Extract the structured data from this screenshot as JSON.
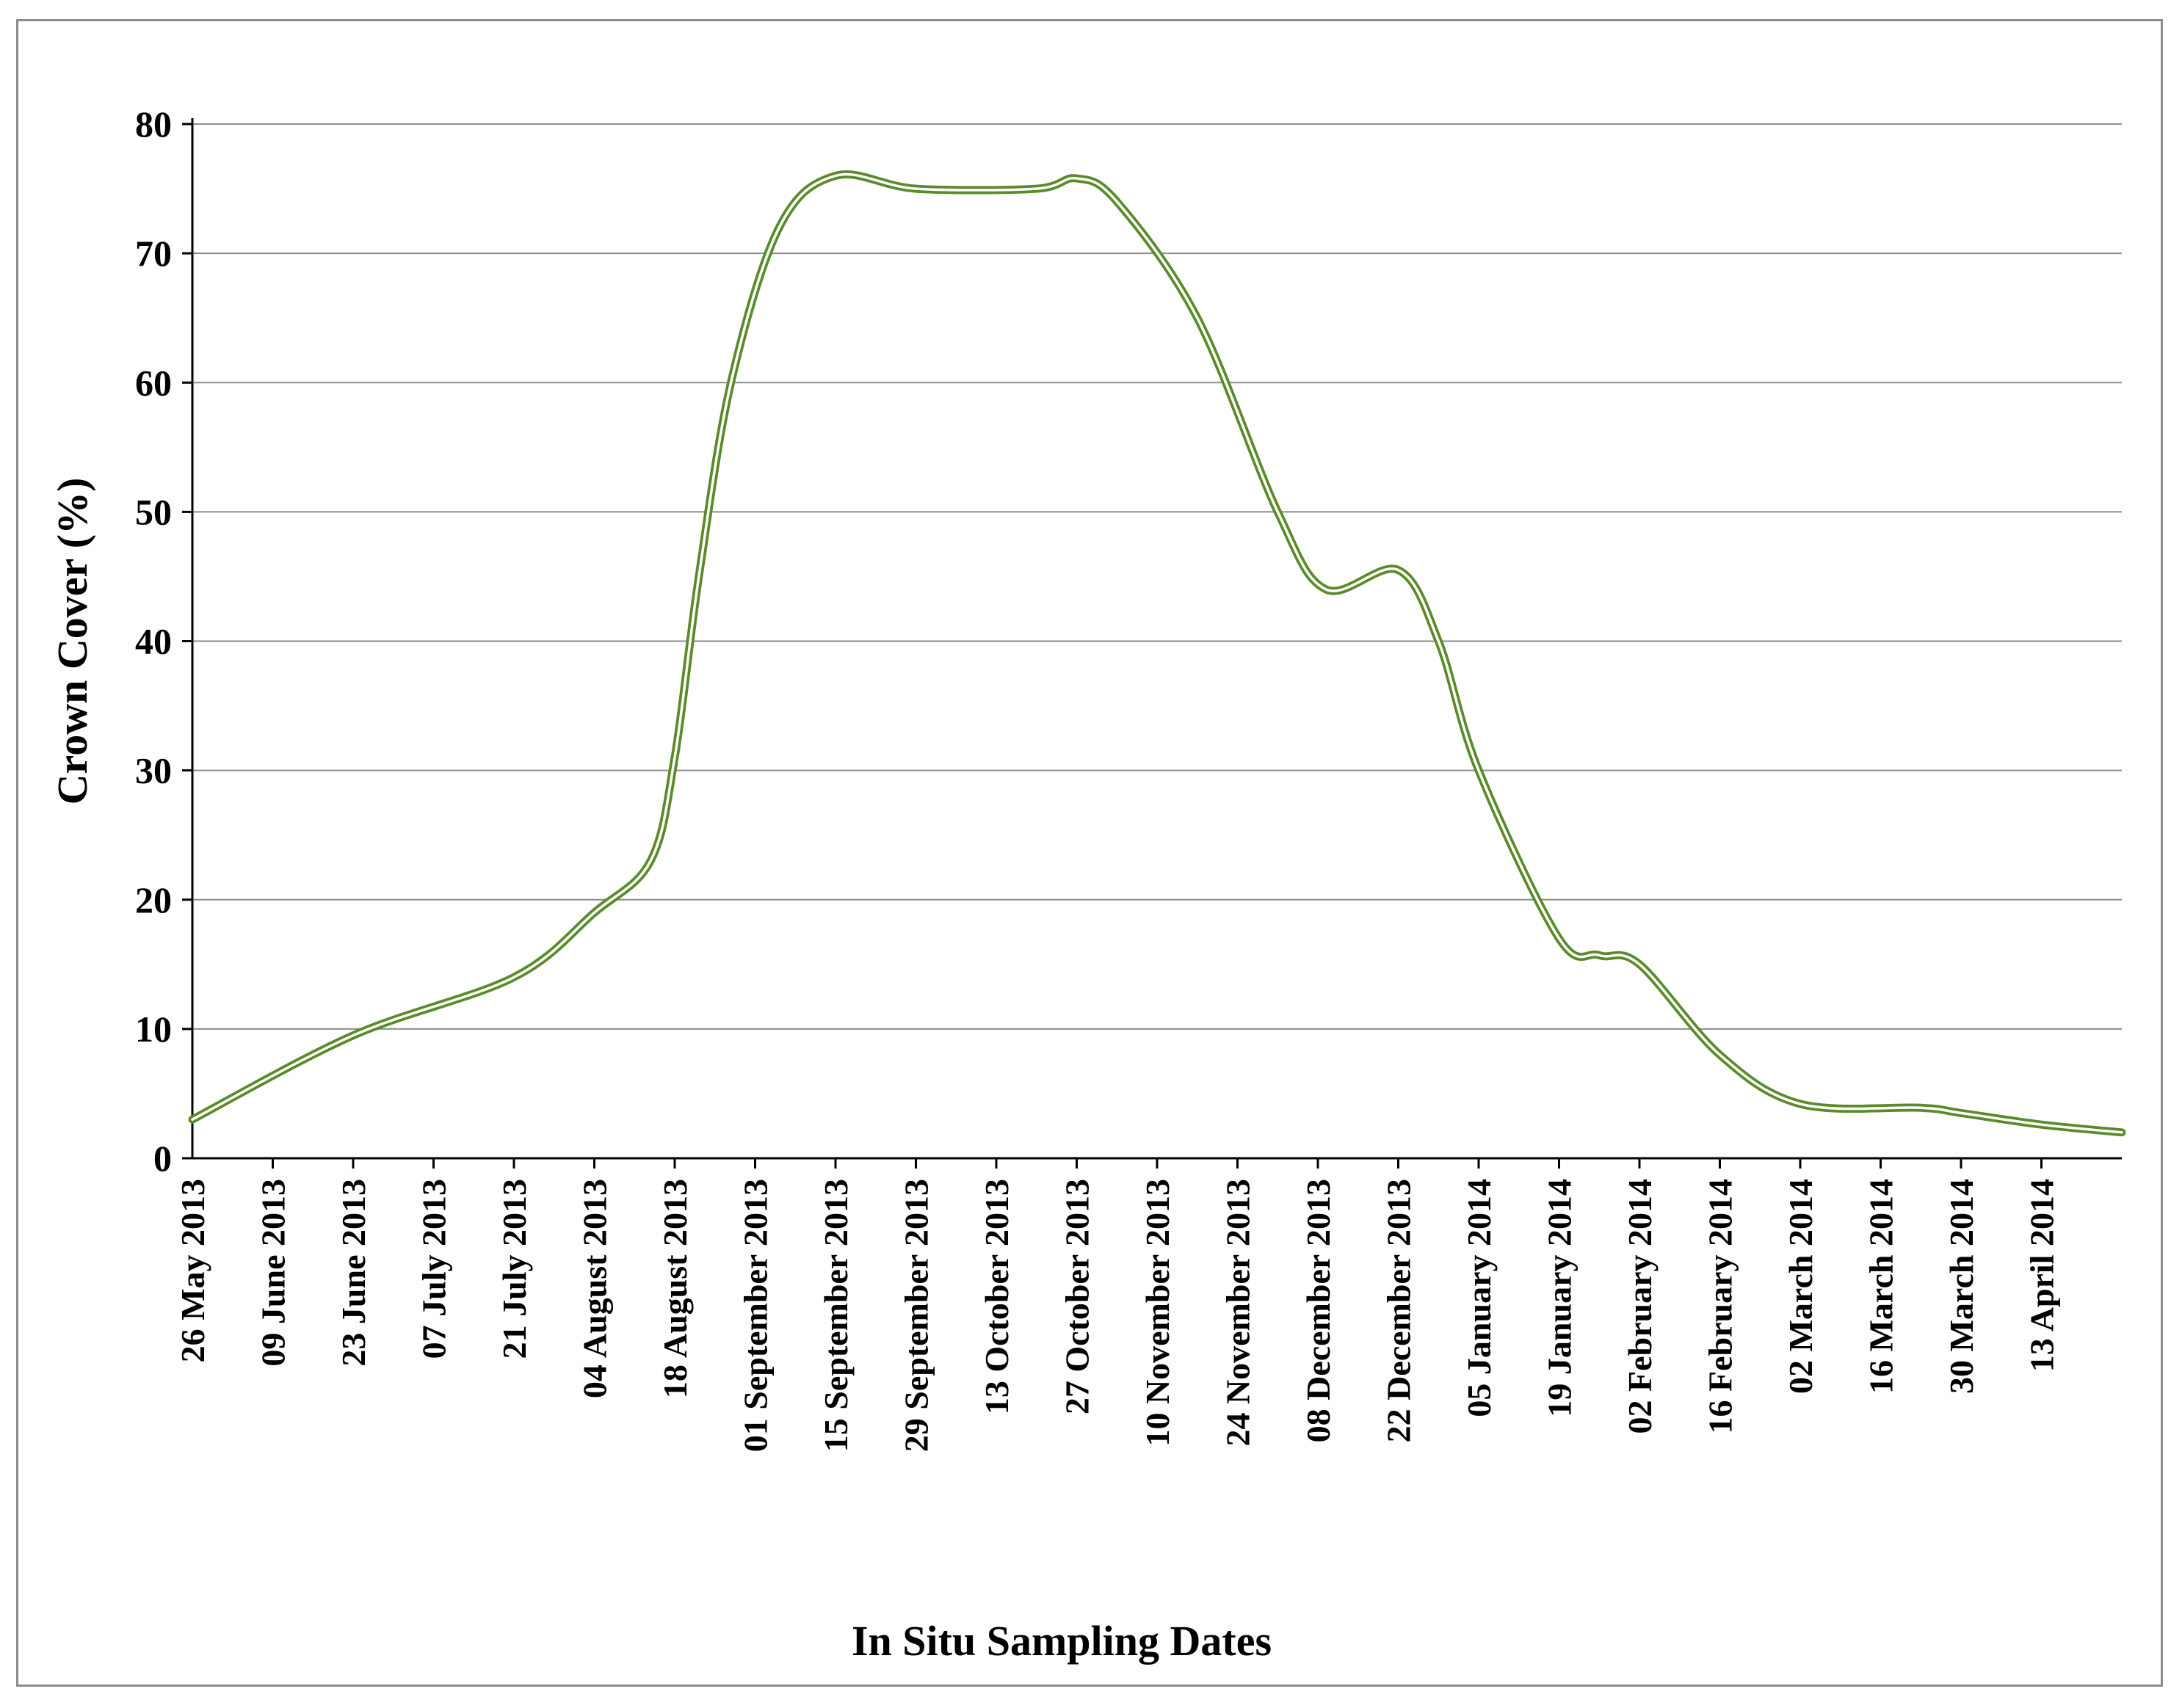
{
  "chart_data": {
    "type": "line",
    "title": "",
    "xlabel": "In Situ Sampling Dates",
    "ylabel": "Crown Cover (%)",
    "ylim": [
      0,
      80
    ],
    "yticks": [
      0,
      10,
      20,
      30,
      40,
      50,
      60,
      70,
      80
    ],
    "grid": true,
    "legend": "none",
    "line_color": "#5b8a2a",
    "tick_labels": [
      "26 May 2013",
      "09 June 2013",
      "23 June 2013",
      "07 July 2013",
      "21 July 2013",
      "04 August 2013",
      "18 August 2013",
      "01 September 2013",
      "15 September 2013",
      "29 September 2013",
      "13 October 2013",
      "27 October 2013",
      "10 November 2013",
      "24 November 2013",
      "08 December 2013",
      "22 December 2013",
      "05 January 2014",
      "19 January 2014",
      "02 February 2014",
      "16 February 2014",
      "02 March 2014",
      "16 March 2014",
      "30 March 2014",
      "13 April 2014"
    ],
    "series": [
      {
        "values": [
          [
            0,
            3
          ],
          [
            2,
            9.5
          ],
          [
            4,
            14
          ],
          [
            5,
            19
          ],
          [
            5.7,
            23
          ],
          [
            6,
            31
          ],
          [
            6.3,
            45
          ],
          [
            6.7,
            60
          ],
          [
            7.3,
            72
          ],
          [
            8,
            76
          ],
          [
            9,
            75
          ],
          [
            10.5,
            75
          ],
          [
            11,
            75.8
          ],
          [
            11.5,
            74
          ],
          [
            12.5,
            65
          ],
          [
            13.5,
            50
          ],
          [
            14.1,
            44
          ],
          [
            15,
            45.5
          ],
          [
            15.5,
            40
          ],
          [
            16,
            30
          ],
          [
            17,
            17
          ],
          [
            17.5,
            15.7
          ],
          [
            18,
            15
          ],
          [
            19,
            8
          ],
          [
            20,
            4.2
          ],
          [
            21.5,
            3.9
          ],
          [
            22,
            3.5
          ],
          [
            23,
            2.6
          ],
          [
            24,
            2
          ]
        ]
      }
    ]
  }
}
